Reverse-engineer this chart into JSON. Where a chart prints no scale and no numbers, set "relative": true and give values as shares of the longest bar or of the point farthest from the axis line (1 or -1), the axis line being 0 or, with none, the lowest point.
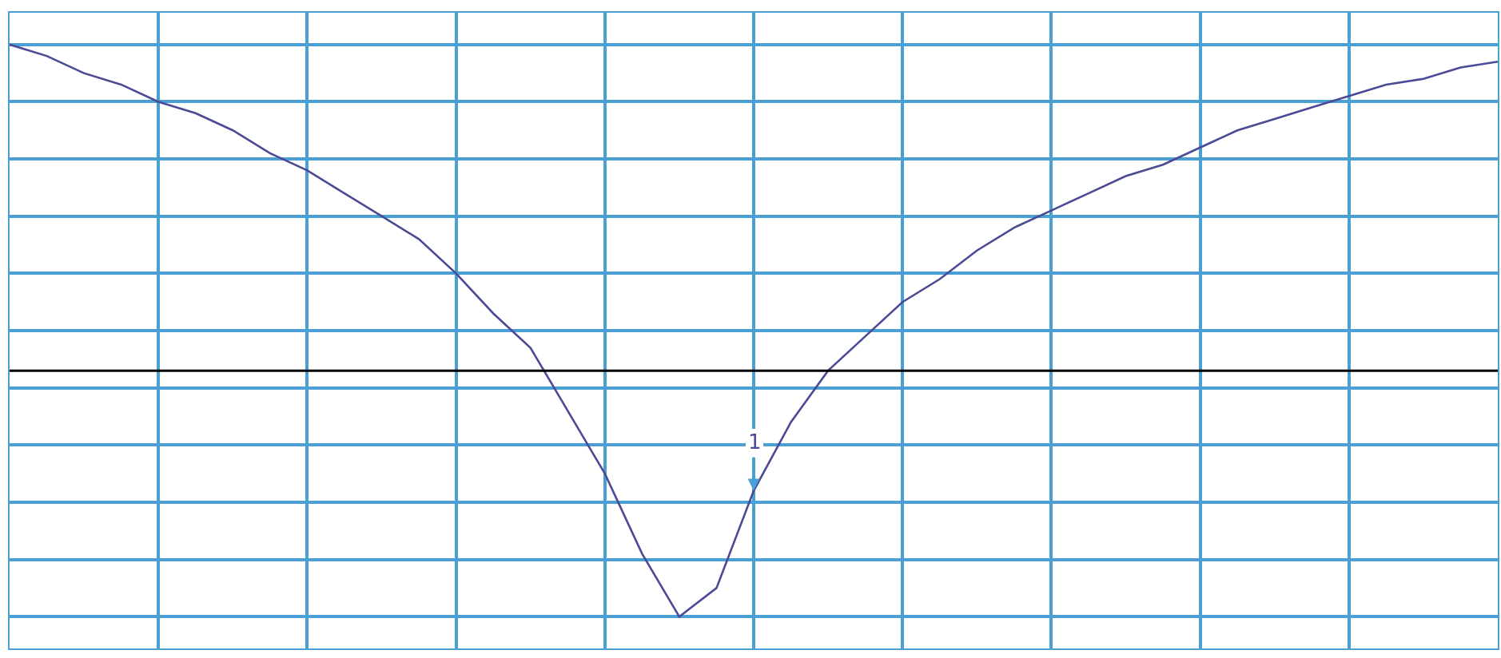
{
  "chart_data": {
    "type": "line",
    "relative": true,
    "grid": true,
    "marker": "none",
    "line_style": "solid",
    "categories": [
      null,
      null,
      null,
      null,
      null,
      null,
      null,
      null,
      null,
      null,
      null,
      null,
      null,
      null,
      null,
      null,
      null,
      null,
      null,
      null,
      null,
      null,
      null,
      null,
      null,
      null,
      null,
      null,
      null,
      null,
      null,
      null,
      null,
      null,
      null,
      null,
      null,
      null,
      null,
      null,
      null
    ],
    "series": [
      {
        "color": "#4a4a96",
        "values": [
          1.0,
          0.98,
          0.95,
          0.93,
          0.9,
          0.88,
          0.85,
          0.81,
          0.78,
          0.74,
          0.7,
          0.66,
          0.6,
          0.53,
          0.47,
          0.36,
          0.25,
          0.11,
          0,
          0.05,
          0.22,
          0.34,
          0.43,
          0.49,
          0.55,
          0.59,
          0.64,
          0.68,
          0.71,
          0.74,
          0.77,
          0.79,
          0.82,
          0.85,
          0.87,
          0.89,
          0.91,
          0.93,
          0.94,
          0.96,
          0.97
        ]
      }
    ],
    "ref_lines": [
      {
        "axis": "y",
        "value": 0.43,
        "color": "#000000"
      }
    ],
    "annotations": [
      "1"
    ]
  }
}
